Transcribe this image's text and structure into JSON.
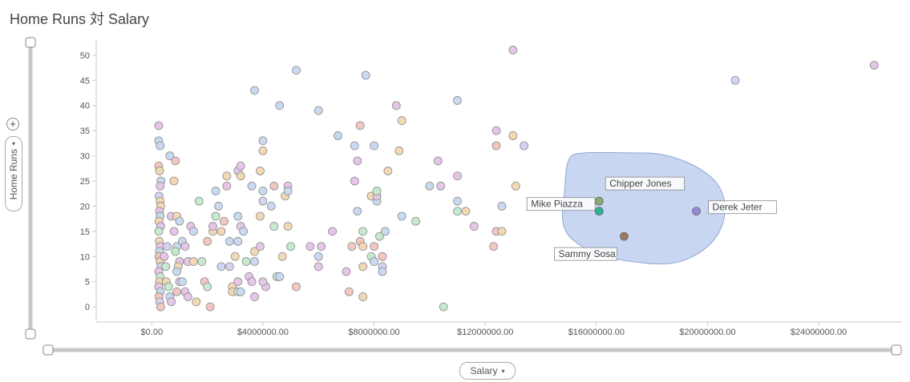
{
  "title": "Home Runs 対 Salary",
  "controls": {
    "y_axis_label": "Home Runs",
    "x_axis_label": "Salary",
    "plus_symbol": "+",
    "caret_symbol": "▾"
  },
  "colors": {
    "accent_lasso": "#c3d2ef",
    "slider": "#c8c8c8",
    "axis": "#cccccc",
    "tick_text": "#555555"
  },
  "chart_data": {
    "type": "scatter",
    "title": "Home Runs 対 Salary",
    "xlabel": "Salary",
    "ylabel": "Home Runs",
    "xlim": [
      -2000000,
      27000000
    ],
    "ylim": [
      -3,
      53
    ],
    "x_ticks": [
      0,
      4000000,
      8000000,
      12000000,
      16000000,
      20000000,
      24000000
    ],
    "x_tick_labels": [
      "$0.00",
      "$4000000.00",
      "$8000000.00",
      "$12000000.00",
      "$16000000.00",
      "$20000000.00",
      "$24000000.00"
    ],
    "y_ticks": [
      0,
      5,
      10,
      15,
      20,
      25,
      30,
      35,
      40,
      45,
      50
    ],
    "grid": false,
    "legend": "none",
    "palette": [
      "#c9daf0",
      "#e6c6e8",
      "#f2d9b4",
      "#c6ead0",
      "#f2c7c0",
      "#d7d2ef"
    ],
    "points": [
      [
        250000,
        36,
        1
      ],
      [
        250000,
        33,
        0
      ],
      [
        300000,
        32,
        0
      ],
      [
        250000,
        28,
        4
      ],
      [
        280000,
        27,
        2
      ],
      [
        330000,
        25,
        0
      ],
      [
        300000,
        24,
        1
      ],
      [
        260000,
        22,
        5
      ],
      [
        300000,
        21,
        2
      ],
      [
        320000,
        20,
        2
      ],
      [
        280000,
        19,
        1
      ],
      [
        300000,
        18,
        0
      ],
      [
        260000,
        17,
        2
      ],
      [
        320000,
        16,
        1
      ],
      [
        250000,
        15,
        3
      ],
      [
        270000,
        13,
        2
      ],
      [
        300000,
        12,
        1
      ],
      [
        280000,
        11,
        0
      ],
      [
        260000,
        10,
        4
      ],
      [
        300000,
        9,
        2
      ],
      [
        330000,
        8,
        5
      ],
      [
        250000,
        7,
        1
      ],
      [
        300000,
        6,
        3
      ],
      [
        280000,
        5,
        2
      ],
      [
        250000,
        4,
        1
      ],
      [
        310000,
        3,
        0
      ],
      [
        260000,
        2,
        4
      ],
      [
        290000,
        1,
        5
      ],
      [
        320000,
        0,
        4
      ],
      [
        450000,
        10,
        1
      ],
      [
        500000,
        8,
        3
      ],
      [
        550000,
        12,
        5
      ],
      [
        520000,
        5,
        2
      ],
      [
        600000,
        4,
        3
      ],
      [
        650000,
        2,
        0
      ],
      [
        700000,
        1,
        1
      ],
      [
        700000,
        18,
        1
      ],
      [
        650000,
        30,
        0
      ],
      [
        850000,
        29,
        4
      ],
      [
        800000,
        25,
        2
      ],
      [
        900000,
        18,
        2
      ],
      [
        1000000,
        17,
        0
      ],
      [
        800000,
        15,
        1
      ],
      [
        900000,
        12,
        0
      ],
      [
        850000,
        11,
        3
      ],
      [
        1000000,
        9,
        1
      ],
      [
        950000,
        8,
        2
      ],
      [
        900000,
        7,
        0
      ],
      [
        1000000,
        5,
        1
      ],
      [
        1100000,
        5,
        0
      ],
      [
        1200000,
        3,
        1
      ],
      [
        900000,
        3,
        4
      ],
      [
        1100000,
        13,
        0
      ],
      [
        1200000,
        12,
        1
      ],
      [
        1300000,
        9,
        1
      ],
      [
        1500000,
        9,
        2
      ],
      [
        1400000,
        16,
        1
      ],
      [
        1500000,
        15,
        0
      ],
      [
        1300000,
        2,
        1
      ],
      [
        1600000,
        1,
        2
      ],
      [
        1700000,
        21,
        3
      ],
      [
        1800000,
        9,
        3
      ],
      [
        1900000,
        5,
        4
      ],
      [
        2000000,
        4,
        3
      ],
      [
        2100000,
        0,
        4
      ],
      [
        2000000,
        13,
        4
      ],
      [
        2200000,
        15,
        2
      ],
      [
        2300000,
        18,
        3
      ],
      [
        2400000,
        20,
        0
      ],
      [
        2300000,
        23,
        0
      ],
      [
        2200000,
        16,
        1
      ],
      [
        2500000,
        15,
        2
      ],
      [
        2700000,
        26,
        2
      ],
      [
        2700000,
        24,
        1
      ],
      [
        2600000,
        17,
        4
      ],
      [
        2800000,
        13,
        0
      ],
      [
        2500000,
        8,
        0
      ],
      [
        2800000,
        8,
        5
      ],
      [
        2900000,
        4,
        2
      ],
      [
        2900000,
        3,
        2
      ],
      [
        3100000,
        3,
        3
      ],
      [
        3100000,
        5,
        1
      ],
      [
        3200000,
        3,
        0
      ],
      [
        3000000,
        10,
        2
      ],
      [
        3100000,
        13,
        0
      ],
      [
        3200000,
        16,
        1
      ],
      [
        3100000,
        18,
        0
      ],
      [
        3300000,
        15,
        0
      ],
      [
        3100000,
        27,
        1
      ],
      [
        3200000,
        28,
        1
      ],
      [
        3200000,
        26,
        2
      ],
      [
        3400000,
        9,
        3
      ],
      [
        3500000,
        6,
        1
      ],
      [
        3600000,
        5,
        1
      ],
      [
        3700000,
        9,
        0
      ],
      [
        3700000,
        11,
        2
      ],
      [
        3700000,
        2,
        1
      ],
      [
        3600000,
        24,
        0
      ],
      [
        3700000,
        43,
        0
      ],
      [
        3900000,
        18,
        2
      ],
      [
        3900000,
        12,
        1
      ],
      [
        4000000,
        23,
        0
      ],
      [
        4000000,
        21,
        5
      ],
      [
        4000000,
        31,
        2
      ],
      [
        4000000,
        33,
        0
      ],
      [
        3900000,
        27,
        2
      ],
      [
        4100000,
        4,
        1
      ],
      [
        4000000,
        5,
        1
      ],
      [
        4300000,
        20,
        0
      ],
      [
        4400000,
        16,
        3
      ],
      [
        4400000,
        24,
        4
      ],
      [
        4600000,
        40,
        0
      ],
      [
        4500000,
        6,
        3
      ],
      [
        4600000,
        6,
        0
      ],
      [
        4700000,
        10,
        2
      ],
      [
        4800000,
        22,
        2
      ],
      [
        4900000,
        24,
        1
      ],
      [
        4900000,
        23,
        0
      ],
      [
        4900000,
        16,
        2
      ],
      [
        5000000,
        12,
        3
      ],
      [
        5200000,
        4,
        4
      ],
      [
        5200000,
        47,
        0
      ],
      [
        5700000,
        12,
        1
      ],
      [
        6100000,
        12,
        1
      ],
      [
        6000000,
        10,
        0
      ],
      [
        6000000,
        8,
        1
      ],
      [
        6000000,
        39,
        0
      ],
      [
        6500000,
        15,
        1
      ],
      [
        6700000,
        34,
        0
      ],
      [
        7000000,
        7,
        1
      ],
      [
        7100000,
        3,
        4
      ],
      [
        7200000,
        12,
        4
      ],
      [
        7300000,
        32,
        0
      ],
      [
        7400000,
        19,
        0
      ],
      [
        7300000,
        25,
        1
      ],
      [
        7400000,
        29,
        1
      ],
      [
        7500000,
        36,
        4
      ],
      [
        7600000,
        15,
        3
      ],
      [
        7500000,
        13,
        4
      ],
      [
        7600000,
        12,
        2
      ],
      [
        7600000,
        8,
        2
      ],
      [
        7600000,
        2,
        2
      ],
      [
        7700000,
        46,
        0
      ],
      [
        7900000,
        22,
        2
      ],
      [
        7900000,
        10,
        3
      ],
      [
        8000000,
        9,
        0
      ],
      [
        8000000,
        12,
        4
      ],
      [
        8100000,
        21,
        0
      ],
      [
        8100000,
        22,
        1
      ],
      [
        8100000,
        23,
        3
      ],
      [
        8200000,
        14,
        3
      ],
      [
        8000000,
        32,
        0
      ],
      [
        8300000,
        8,
        5
      ],
      [
        8300000,
        10,
        4
      ],
      [
        8300000,
        7,
        0
      ],
      [
        8400000,
        15,
        0
      ],
      [
        8500000,
        27,
        2
      ],
      [
        8800000,
        40,
        1
      ],
      [
        9000000,
        18,
        0
      ],
      [
        8900000,
        31,
        2
      ],
      [
        9000000,
        37,
        2
      ],
      [
        9500000,
        17,
        3
      ],
      [
        10000000,
        24,
        0
      ],
      [
        10300000,
        29,
        1
      ],
      [
        10400000,
        24,
        1
      ],
      [
        10500000,
        0,
        3
      ],
      [
        11000000,
        41,
        0
      ],
      [
        11000000,
        26,
        1
      ],
      [
        11000000,
        21,
        0
      ],
      [
        11000000,
        19,
        3
      ],
      [
        11300000,
        19,
        2
      ],
      [
        11600000,
        16,
        1
      ],
      [
        12300000,
        12,
        4
      ],
      [
        12400000,
        35,
        1
      ],
      [
        12400000,
        32,
        4
      ],
      [
        12400000,
        15,
        4
      ],
      [
        12600000,
        15,
        2
      ],
      [
        12600000,
        20,
        0
      ],
      [
        13000000,
        51,
        1
      ],
      [
        13000000,
        34,
        2
      ],
      [
        13100000,
        24,
        2
      ],
      [
        13400000,
        32,
        5
      ],
      [
        21000000,
        45,
        0
      ],
      [
        26000000,
        48,
        1
      ]
    ],
    "highlighted": [
      {
        "name": "Chipper Jones",
        "x": 16100000,
        "y": 21,
        "color": "#8bab6e"
      },
      {
        "name": "Mike Piazza",
        "x": 16100000,
        "y": 19,
        "color": "#2fb09a"
      },
      {
        "name": "Derek Jeter",
        "x": 19600000,
        "y": 19,
        "color": "#9a86d8"
      },
      {
        "name": "Sammy Sosa",
        "x": 17000000,
        "y": 14,
        "color": "#9b7766"
      }
    ]
  }
}
